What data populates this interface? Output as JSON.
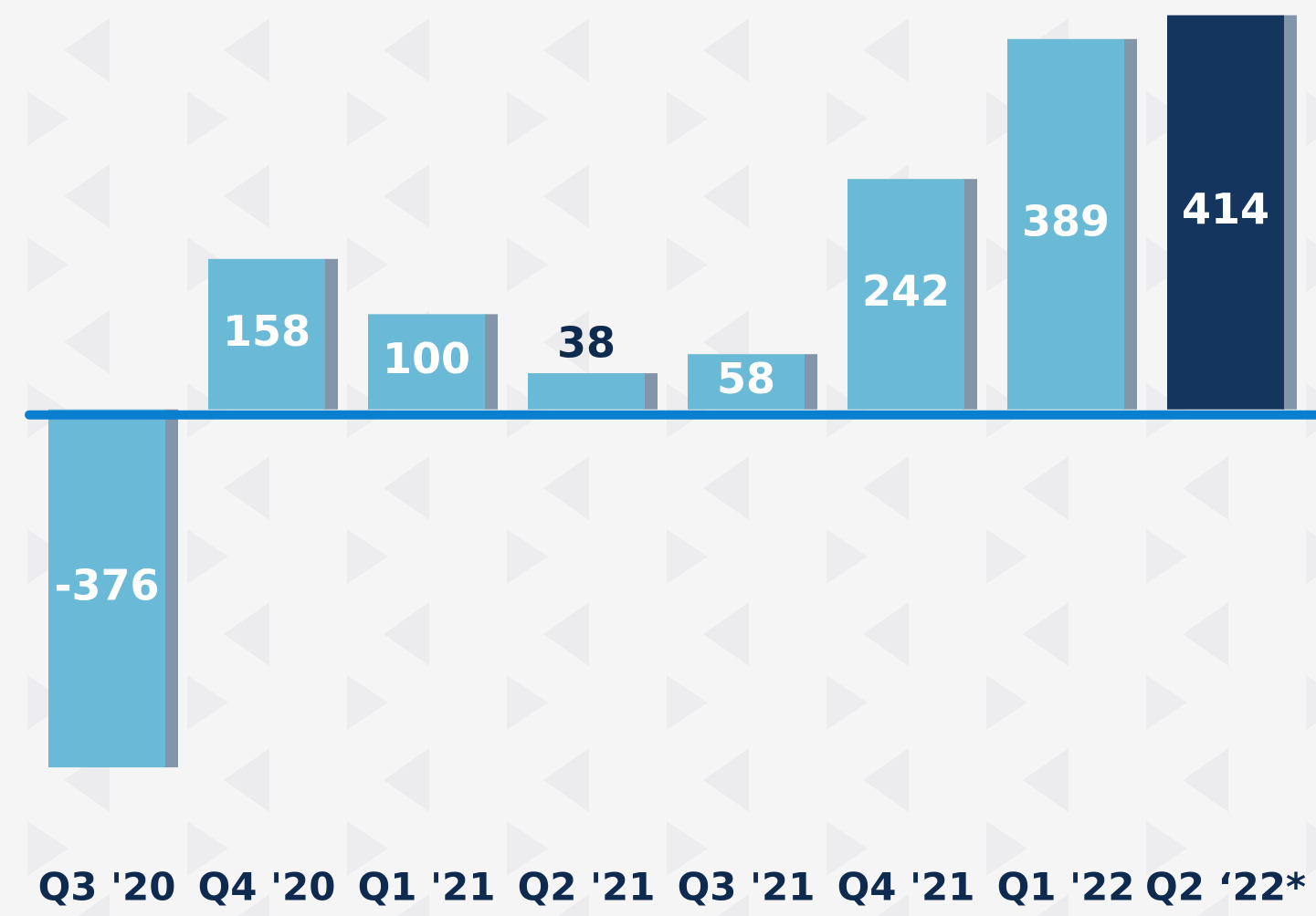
{
  "chart_data": {
    "type": "bar",
    "categories": [
      "Q3 '20",
      "Q4 '20",
      "Q1 '21",
      "Q2 '21",
      "Q3 '21",
      "Q4 '21",
      "Q1 '22",
      "Q2 ‘22*"
    ],
    "values": [
      -376,
      158,
      100,
      38,
      58,
      242,
      389,
      414
    ],
    "colors": [
      "#6ab9d6",
      "#6ab9d6",
      "#6ab9d6",
      "#6ab9d6",
      "#6ab9d6",
      "#6ab9d6",
      "#6ab9d6",
      "#14365e"
    ],
    "ylim": [
      -420,
      430
    ]
  }
}
